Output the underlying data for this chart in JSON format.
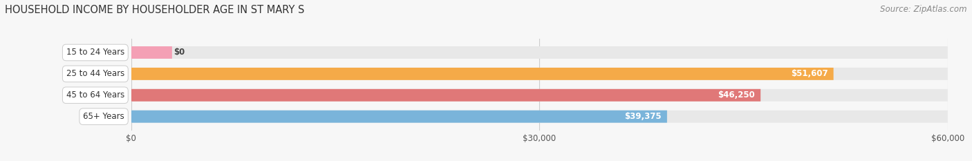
{
  "title": "HOUSEHOLD INCOME BY HOUSEHOLDER AGE IN ST MARY S",
  "source": "Source: ZipAtlas.com",
  "categories": [
    "15 to 24 Years",
    "25 to 44 Years",
    "45 to 64 Years",
    "65+ Years"
  ],
  "values": [
    0,
    51607,
    46250,
    39375
  ],
  "value_labels": [
    "$0",
    "$51,607",
    "$46,250",
    "$39,375"
  ],
  "bar_colors": [
    "#f4a0b5",
    "#f5aa48",
    "#e07878",
    "#7ab4da"
  ],
  "bar_bg_color": "#e8e8e8",
  "xlim": [
    0,
    60000
  ],
  "xtick_labels": [
    "$0",
    "$30,000",
    "$60,000"
  ],
  "xtick_vals": [
    0,
    30000,
    60000
  ],
  "background_color": "#f7f7f7",
  "title_fontsize": 10.5,
  "source_fontsize": 8.5,
  "label_fontsize": 8.5,
  "tick_fontsize": 8.5,
  "bar_height": 0.58,
  "bar_label_color": "#ffffff",
  "category_label_color": "#333333",
  "grid_color": "#cccccc"
}
